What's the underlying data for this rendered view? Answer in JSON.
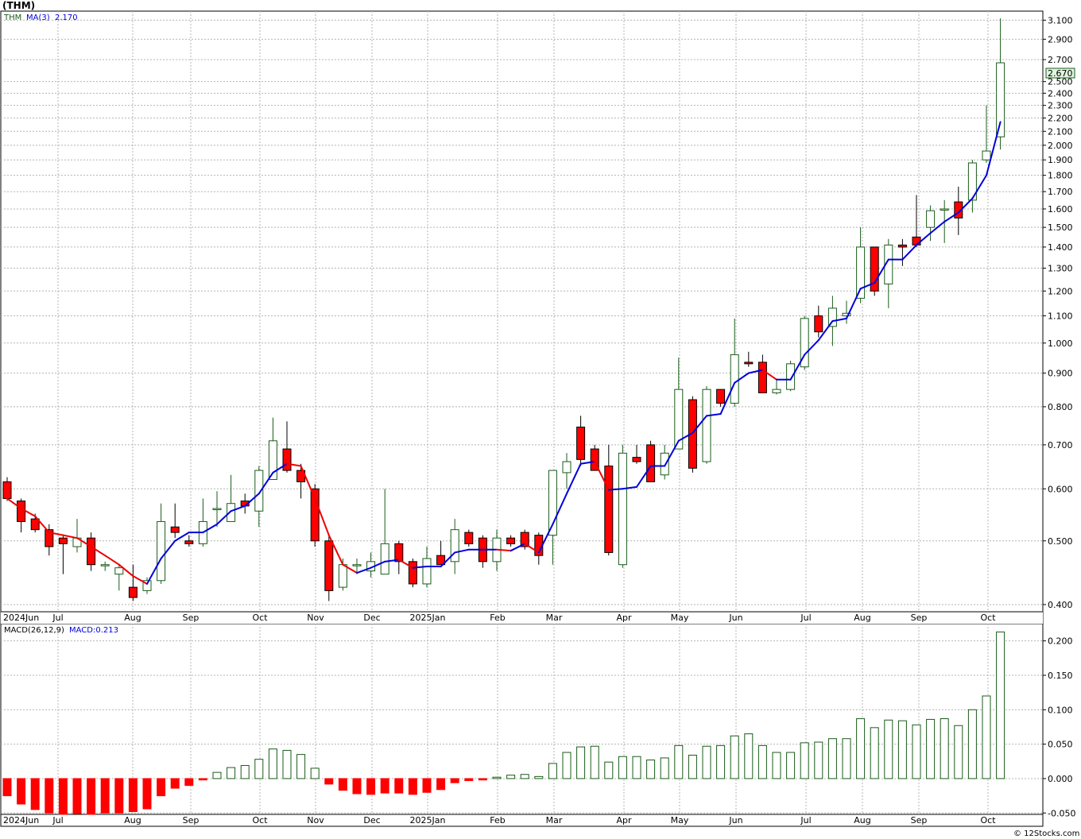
{
  "header": {
    "title": "(THM)",
    "legend_symbol": "THM",
    "legend_ma": "MA(3)",
    "legend_ma_value": "2.170",
    "macd_legend": "MACD(26,12,9)",
    "macd_value": "MACD:0.213",
    "last_price_tag": "2.670",
    "footer": "© 12Stocks.com"
  },
  "colors": {
    "up_candle_stroke": "#1a5c1a",
    "down_candle": "#ff0000",
    "ma_up": "#0000dd",
    "ma_down": "#ee0000",
    "grid": "#b4b4b4",
    "macd_pos_stroke": "#1a5c1a",
    "macd_neg": "#ff0000",
    "price_tag_bg": "#dff5df"
  },
  "chart_data": [
    {
      "type": "candlestick",
      "series_name": "THM",
      "scale": "log",
      "ylim": [
        0.39,
        3.2
      ],
      "y_ticks": [
        "0.400",
        "0.500",
        "0.600",
        "0.700",
        "0.800",
        "0.900",
        "1.000",
        "1.100",
        "1.200",
        "1.300",
        "1.400",
        "1.500",
        "1.600",
        "1.700",
        "1.800",
        "1.900",
        "2.000",
        "2.100",
        "2.200",
        "2.300",
        "2.400",
        "2.500",
        "2.700",
        "2.900",
        "3.100"
      ],
      "x_tick_labels": [
        "2024Jun",
        "Jul",
        "Aug",
        "Sep",
        "Oct",
        "Nov",
        "Dec",
        "2025Jan",
        "Feb",
        "Mar",
        "Apr",
        "May",
        "Jun",
        "Jul",
        "Aug",
        "Sep",
        "Oct"
      ],
      "candles": [
        {
          "o": 0.615,
          "h": 0.625,
          "l": 0.575,
          "c": 0.58
        },
        {
          "o": 0.575,
          "h": 0.58,
          "l": 0.515,
          "c": 0.535
        },
        {
          "o": 0.54,
          "h": 0.55,
          "l": 0.515,
          "c": 0.52
        },
        {
          "o": 0.52,
          "h": 0.53,
          "l": 0.475,
          "c": 0.49
        },
        {
          "o": 0.505,
          "h": 0.51,
          "l": 0.445,
          "c": 0.495
        },
        {
          "o": 0.49,
          "h": 0.54,
          "l": 0.48,
          "c": 0.505
        },
        {
          "o": 0.505,
          "h": 0.515,
          "l": 0.45,
          "c": 0.46
        },
        {
          "o": 0.46,
          "h": 0.465,
          "l": 0.45,
          "c": 0.46
        },
        {
          "o": 0.445,
          "h": 0.46,
          "l": 0.42,
          "c": 0.455
        },
        {
          "o": 0.425,
          "h": 0.46,
          "l": 0.405,
          "c": 0.41
        },
        {
          "o": 0.42,
          "h": 0.44,
          "l": 0.415,
          "c": 0.435
        },
        {
          "o": 0.435,
          "h": 0.57,
          "l": 0.43,
          "c": 0.535
        },
        {
          "o": 0.525,
          "h": 0.57,
          "l": 0.505,
          "c": 0.515
        },
        {
          "o": 0.5,
          "h": 0.51,
          "l": 0.49,
          "c": 0.495
        },
        {
          "o": 0.495,
          "h": 0.58,
          "l": 0.49,
          "c": 0.535
        },
        {
          "o": 0.56,
          "h": 0.595,
          "l": 0.525,
          "c": 0.56
        },
        {
          "o": 0.535,
          "h": 0.63,
          "l": 0.535,
          "c": 0.57
        },
        {
          "o": 0.575,
          "h": 0.59,
          "l": 0.55,
          "c": 0.565
        },
        {
          "o": 0.555,
          "h": 0.65,
          "l": 0.525,
          "c": 0.64
        },
        {
          "o": 0.62,
          "h": 0.77,
          "l": 0.62,
          "c": 0.71
        },
        {
          "o": 0.69,
          "h": 0.76,
          "l": 0.635,
          "c": 0.64
        },
        {
          "o": 0.64,
          "h": 0.655,
          "l": 0.58,
          "c": 0.615
        },
        {
          "o": 0.6,
          "h": 0.61,
          "l": 0.49,
          "c": 0.5
        },
        {
          "o": 0.5,
          "h": 0.51,
          "l": 0.405,
          "c": 0.42
        },
        {
          "o": 0.425,
          "h": 0.47,
          "l": 0.42,
          "c": 0.46
        },
        {
          "o": 0.46,
          "h": 0.47,
          "l": 0.445,
          "c": 0.46
        },
        {
          "o": 0.45,
          "h": 0.48,
          "l": 0.44,
          "c": 0.465
        },
        {
          "o": 0.445,
          "h": 0.6,
          "l": 0.445,
          "c": 0.495
        },
        {
          "o": 0.495,
          "h": 0.5,
          "l": 0.445,
          "c": 0.465
        },
        {
          "o": 0.465,
          "h": 0.47,
          "l": 0.425,
          "c": 0.43
        },
        {
          "o": 0.43,
          "h": 0.49,
          "l": 0.425,
          "c": 0.47
        },
        {
          "o": 0.475,
          "h": 0.5,
          "l": 0.46,
          "c": 0.46
        },
        {
          "o": 0.465,
          "h": 0.54,
          "l": 0.445,
          "c": 0.52
        },
        {
          "o": 0.515,
          "h": 0.52,
          "l": 0.49,
          "c": 0.495
        },
        {
          "o": 0.505,
          "h": 0.51,
          "l": 0.455,
          "c": 0.465
        },
        {
          "o": 0.465,
          "h": 0.52,
          "l": 0.45,
          "c": 0.505
        },
        {
          "o": 0.505,
          "h": 0.51,
          "l": 0.49,
          "c": 0.495
        },
        {
          "o": 0.515,
          "h": 0.52,
          "l": 0.485,
          "c": 0.49
        },
        {
          "o": 0.51,
          "h": 0.515,
          "l": 0.46,
          "c": 0.475
        },
        {
          "o": 0.51,
          "h": 0.64,
          "l": 0.46,
          "c": 0.64
        },
        {
          "o": 0.635,
          "h": 0.68,
          "l": 0.6,
          "c": 0.66
        },
        {
          "o": 0.745,
          "h": 0.775,
          "l": 0.65,
          "c": 0.665
        },
        {
          "o": 0.69,
          "h": 0.7,
          "l": 0.64,
          "c": 0.64
        },
        {
          "o": 0.65,
          "h": 0.7,
          "l": 0.475,
          "c": 0.48
        },
        {
          "o": 0.46,
          "h": 0.7,
          "l": 0.455,
          "c": 0.68
        },
        {
          "o": 0.67,
          "h": 0.7,
          "l": 0.655,
          "c": 0.66
        },
        {
          "o": 0.7,
          "h": 0.71,
          "l": 0.615,
          "c": 0.615
        },
        {
          "o": 0.63,
          "h": 0.7,
          "l": 0.62,
          "c": 0.68
        },
        {
          "o": 0.69,
          "h": 0.95,
          "l": 0.69,
          "c": 0.85
        },
        {
          "o": 0.82,
          "h": 0.83,
          "l": 0.635,
          "c": 0.645
        },
        {
          "o": 0.66,
          "h": 0.86,
          "l": 0.655,
          "c": 0.85
        },
        {
          "o": 0.85,
          "h": 0.85,
          "l": 0.8,
          "c": 0.81
        },
        {
          "o": 0.81,
          "h": 1.09,
          "l": 0.8,
          "c": 0.96
        },
        {
          "o": 0.935,
          "h": 0.97,
          "l": 0.92,
          "c": 0.93
        },
        {
          "o": 0.935,
          "h": 0.96,
          "l": 0.84,
          "c": 0.84
        },
        {
          "o": 0.84,
          "h": 0.88,
          "l": 0.835,
          "c": 0.85
        },
        {
          "o": 0.85,
          "h": 0.94,
          "l": 0.845,
          "c": 0.93
        },
        {
          "o": 0.92,
          "h": 1.1,
          "l": 0.91,
          "c": 1.09
        },
        {
          "o": 1.1,
          "h": 1.14,
          "l": 1.02,
          "c": 1.04
        },
        {
          "o": 1.06,
          "h": 1.18,
          "l": 0.99,
          "c": 1.13
        },
        {
          "o": 1.1,
          "h": 1.16,
          "l": 1.07,
          "c": 1.11
        },
        {
          "o": 1.17,
          "h": 1.5,
          "l": 1.15,
          "c": 1.4
        },
        {
          "o": 1.4,
          "h": 1.4,
          "l": 1.18,
          "c": 1.2
        },
        {
          "o": 1.23,
          "h": 1.44,
          "l": 1.13,
          "c": 1.41
        },
        {
          "o": 1.41,
          "h": 1.44,
          "l": 1.31,
          "c": 1.4
        },
        {
          "o": 1.45,
          "h": 1.68,
          "l": 1.4,
          "c": 1.41
        },
        {
          "o": 1.5,
          "h": 1.62,
          "l": 1.43,
          "c": 1.59
        },
        {
          "o": 1.6,
          "h": 1.65,
          "l": 1.42,
          "c": 1.6
        },
        {
          "o": 1.64,
          "h": 1.73,
          "l": 1.46,
          "c": 1.55
        },
        {
          "o": 1.65,
          "h": 1.9,
          "l": 1.58,
          "c": 1.88
        },
        {
          "o": 1.9,
          "h": 2.3,
          "l": 1.88,
          "c": 1.96
        },
        {
          "o": 2.06,
          "h": 3.12,
          "l": 1.97,
          "c": 2.67
        }
      ],
      "ma": [
        0.58,
        0.56,
        0.545,
        0.515,
        0.51,
        0.505,
        0.49,
        0.475,
        0.46,
        0.442,
        0.43,
        0.47,
        0.5,
        0.515,
        0.515,
        0.53,
        0.555,
        0.565,
        0.59,
        0.635,
        0.655,
        0.65,
        0.58,
        0.51,
        0.46,
        0.447,
        0.455,
        0.465,
        0.468,
        0.455,
        0.457,
        0.457,
        0.48,
        0.485,
        0.485,
        0.485,
        0.483,
        0.495,
        0.48,
        0.53,
        0.59,
        0.655,
        0.66,
        0.598,
        0.6,
        0.604,
        0.65,
        0.65,
        0.71,
        0.73,
        0.775,
        0.78,
        0.87,
        0.9,
        0.91,
        0.88,
        0.88,
        0.96,
        1.01,
        1.08,
        1.09,
        1.21,
        1.235,
        1.34,
        1.34,
        1.41,
        1.47,
        1.53,
        1.58,
        1.66,
        1.8,
        2.17
      ]
    },
    {
      "type": "bar",
      "series_name": "MACD(26,12,9)",
      "ylim": [
        -0.052,
        0.225
      ],
      "y_ticks": [
        "-0.050",
        "0.000",
        "0.050",
        "0.100",
        "0.150",
        "0.200"
      ],
      "values": [
        -0.025,
        -0.037,
        -0.045,
        -0.05,
        -0.052,
        -0.051,
        -0.052,
        -0.05,
        -0.05,
        -0.048,
        -0.044,
        -0.025,
        -0.014,
        -0.01,
        -0.002,
        0.009,
        0.016,
        0.019,
        0.028,
        0.043,
        0.041,
        0.035,
        0.015,
        -0.008,
        -0.017,
        -0.022,
        -0.023,
        -0.021,
        -0.021,
        -0.023,
        -0.02,
        -0.016,
        -0.006,
        -0.003,
        -0.002,
        0.002,
        0.005,
        0.006,
        0.003,
        0.022,
        0.038,
        0.046,
        0.047,
        0.024,
        0.032,
        0.032,
        0.027,
        0.03,
        0.048,
        0.034,
        0.047,
        0.048,
        0.062,
        0.065,
        0.048,
        0.038,
        0.038,
        0.052,
        0.053,
        0.058,
        0.058,
        0.087,
        0.074,
        0.085,
        0.084,
        0.078,
        0.086,
        0.087,
        0.077,
        0.1,
        0.12,
        0.213
      ]
    }
  ]
}
